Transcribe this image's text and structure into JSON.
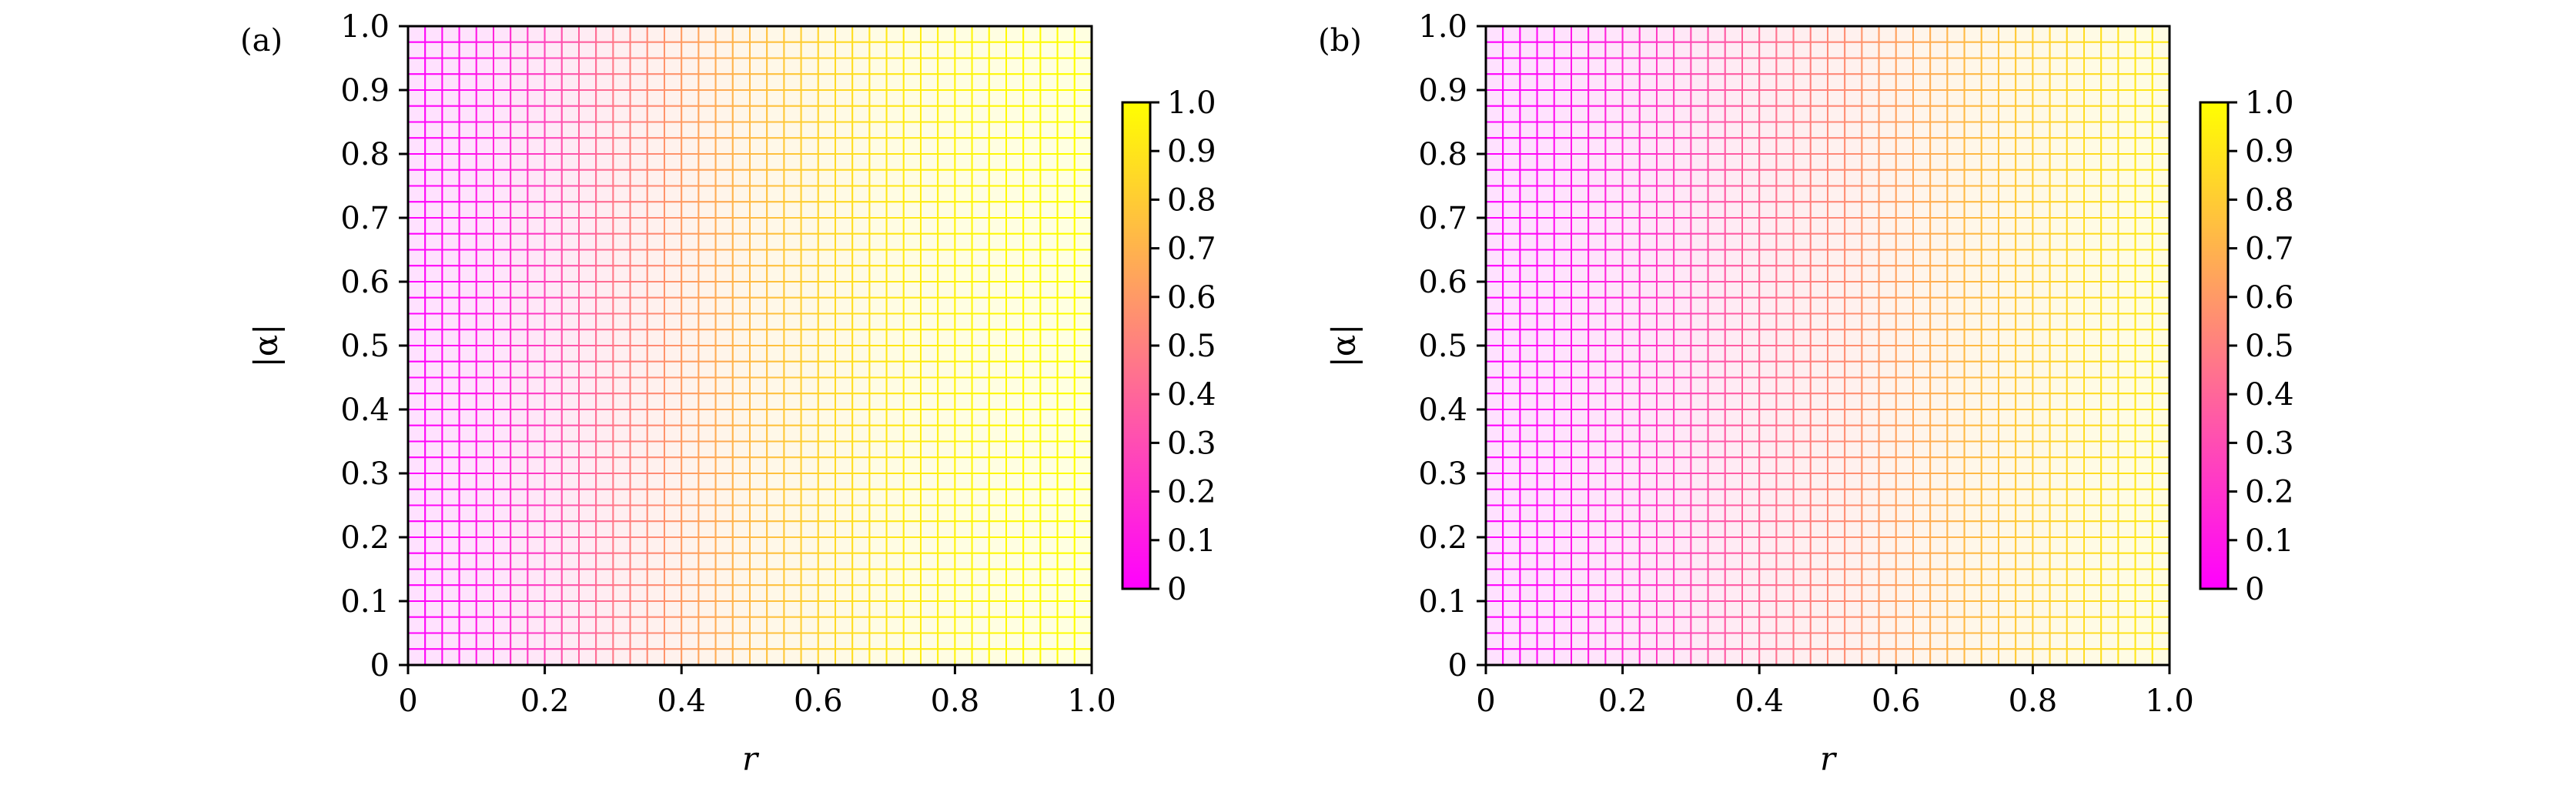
{
  "figure": {
    "colors": {
      "low": "#ff00ff",
      "mid": "#ff8080",
      "high": "#ffff00",
      "frame": "#000000",
      "background": "#ffffff"
    }
  },
  "chart_data": [
    {
      "type": "heatmap",
      "panel_label": "(a)",
      "title": "",
      "xlabel": "r",
      "ylabel": "|α|",
      "xlim": [
        0,
        1.0
      ],
      "ylim": [
        0,
        1.0
      ],
      "x_ticks": [
        "0",
        "0.2",
        "0.4",
        "0.6",
        "0.8",
        "1.0"
      ],
      "y_ticks": [
        "0",
        "0.1",
        "0.2",
        "0.3",
        "0.4",
        "0.5",
        "0.6",
        "0.7",
        "0.8",
        "0.9",
        "1.0"
      ],
      "grid_cols": 40,
      "grid_rows": 40,
      "grid": true,
      "value_profile": {
        "r": [
          0,
          0.1,
          0.2,
          0.3,
          0.4,
          0.5,
          0.6,
          0.7,
          0.8,
          0.9,
          1.0
        ],
        "value": [
          0.0,
          0.08,
          0.25,
          0.45,
          0.6,
          0.72,
          0.82,
          0.9,
          0.95,
          0.98,
          1.0
        ]
      },
      "colorbar": {
        "range": [
          0,
          1.0
        ],
        "ticks": [
          "0",
          "0.1",
          "0.2",
          "0.3",
          "0.4",
          "0.5",
          "0.6",
          "0.7",
          "0.8",
          "0.9",
          "1.0"
        ],
        "colormap": "spring"
      }
    },
    {
      "type": "heatmap",
      "panel_label": "(b)",
      "title": "",
      "xlabel": "r",
      "ylabel": "|α|",
      "xlim": [
        0,
        1.0
      ],
      "ylim": [
        0,
        1.0
      ],
      "x_ticks": [
        "0",
        "0.2",
        "0.4",
        "0.6",
        "0.8",
        "1.0"
      ],
      "y_ticks": [
        "0",
        "0.1",
        "0.2",
        "0.3",
        "0.4",
        "0.5",
        "0.6",
        "0.7",
        "0.8",
        "0.9",
        "1.0"
      ],
      "grid_cols": 40,
      "grid_rows": 40,
      "grid": true,
      "value_profile": {
        "r": [
          0,
          0.1,
          0.2,
          0.3,
          0.4,
          0.5,
          0.6,
          0.7,
          0.8,
          0.9,
          1.0
        ],
        "value": [
          0.0,
          0.05,
          0.15,
          0.28,
          0.4,
          0.52,
          0.62,
          0.72,
          0.8,
          0.87,
          0.92
        ]
      },
      "colorbar": {
        "range": [
          0,
          1.0
        ],
        "ticks": [
          "0",
          "0.1",
          "0.2",
          "0.3",
          "0.4",
          "0.5",
          "0.6",
          "0.7",
          "0.8",
          "0.9",
          "1.0"
        ],
        "colormap": "spring"
      }
    }
  ]
}
